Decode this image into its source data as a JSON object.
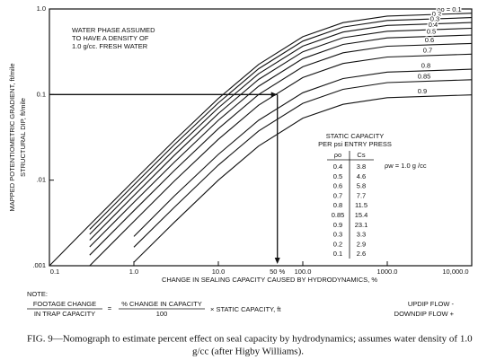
{
  "chart_data": {
    "type": "line",
    "log_x": true,
    "log_y": true,
    "grid": false,
    "xlabel": "CHANGE IN SEALING CAPACITY CAUSED BY HYDRODYNAMICS, %",
    "ylabel": [
      "MAPPED POTENTIOMETRIC GRADIENT, ft/mile",
      "STRUCTURAL DIP, ft/mile"
    ],
    "xlim": [
      0.1,
      10000
    ],
    "ylim": [
      0.001,
      1
    ],
    "xticks": [
      0.1,
      {
        "value": 1,
        "label": "1.0"
      },
      {
        "value": 10,
        "label": "10.0"
      },
      {
        "value": 100,
        "label": "100.0"
      },
      {
        "value": 1000,
        "label": "1000.0"
      },
      {
        "value": 10000,
        "label": "10,000.0"
      }
    ],
    "yticks": [
      {
        "value": 0.001,
        "label": ".001"
      },
      {
        "value": 0.01,
        "label": ".01"
      },
      0.1,
      {
        "value": 1,
        "label": "1.0"
      }
    ],
    "x": [
      0.1,
      0.3,
      1,
      3,
      10,
      30,
      100,
      300,
      1000,
      10000
    ],
    "series": [
      {
        "name": "ρo = 0.1",
        "color": "#111",
        "values": [
          0.001,
          0.003,
          0.0099,
          0.029,
          0.09,
          0.225,
          0.474,
          0.692,
          0.826,
          0.892
        ]
      },
      {
        "name": "0.2",
        "color": "#111",
        "values": [
          null,
          0.00266,
          0.0088,
          0.0258,
          0.08,
          0.2,
          0.421,
          0.615,
          0.734,
          0.793
        ]
      },
      {
        "name": "0.3",
        "color": "#111",
        "values": [
          null,
          0.00233,
          0.0077,
          0.0226,
          0.07,
          0.175,
          0.368,
          0.538,
          0.642,
          0.694
        ]
      },
      {
        "name": "0.4",
        "color": "#111",
        "values": [
          null,
          0.00199,
          0.0066,
          0.0194,
          0.06,
          0.15,
          0.316,
          0.462,
          0.55,
          0.595
        ]
      },
      {
        "name": "0.5",
        "color": "#111",
        "values": [
          null,
          0.00166,
          0.0055,
          0.0161,
          0.05,
          0.125,
          0.263,
          0.385,
          0.459,
          0.496
        ]
      },
      {
        "name": "0.6",
        "color": "#111",
        "values": [
          null,
          0.00133,
          0.0044,
          0.0129,
          0.04,
          0.1,
          0.211,
          0.308,
          0.367,
          0.396
        ]
      },
      {
        "name": "0.7",
        "color": "#111",
        "values": [
          null,
          0.001,
          0.0033,
          0.0097,
          0.03,
          0.075,
          0.158,
          0.231,
          0.275,
          0.297
        ]
      },
      {
        "name": "0.8",
        "color": "#111",
        "values": [
          null,
          null,
          0.0022,
          0.0065,
          0.02,
          0.05,
          0.105,
          0.154,
          0.183,
          0.198
        ]
      },
      {
        "name": "0.85",
        "color": "#111",
        "values": [
          null,
          null,
          0.00165,
          0.0048,
          0.015,
          0.0375,
          0.079,
          0.115,
          0.138,
          0.149
        ]
      },
      {
        "name": "0.9",
        "color": "#111",
        "values": [
          null,
          null,
          0.0011,
          0.0032,
          0.01,
          0.025,
          0.053,
          0.077,
          0.092,
          0.099
        ]
      }
    ],
    "example": {
      "x": 50,
      "y": 0.1,
      "label": "50 %"
    },
    "annotation": [
      "WATER PHASE ASSUMED",
      "TO HAVE A DENSITY OF",
      "1.0 g/cc. FRESH WATER"
    ],
    "table": {
      "title": [
        "STATIC CAPACITY",
        "PER psi ENTRY PRESS"
      ],
      "headers": [
        "ρo",
        "Cs"
      ],
      "note": "ρw = 1.0 g /cc",
      "rows": [
        [
          "0.4",
          "3.8"
        ],
        [
          "0.5",
          "4.6"
        ],
        [
          "0.6",
          "5.8"
        ],
        [
          "0.7",
          "7.7"
        ],
        [
          "0.8",
          "11.5"
        ],
        [
          "0.85",
          "15.4"
        ],
        [
          "0.9",
          "23.1"
        ],
        [
          "0.3",
          "3.3"
        ],
        [
          "0.2",
          "2.9"
        ],
        [
          "0.1",
          "2.6"
        ]
      ]
    },
    "formula": {
      "label": "NOTE:",
      "num1": "FOOTAGE CHANGE",
      "den1": "IN TRAP CAPACITY",
      "eq": "=",
      "num2": "% CHANGE IN CAPACITY",
      "den2": "100",
      "tail": "× STATIC CAPACITY, ft",
      "updip": "UPDIP FLOW -",
      "downdip": "DOWNDIP FLOW +"
    },
    "caption": [
      "FIG. 9—Nomograph to estimate percent effect on seal capacity by hydrodynamics; assumes water density of 1.0",
      "g/cc (after Higby Williams)."
    ]
  }
}
